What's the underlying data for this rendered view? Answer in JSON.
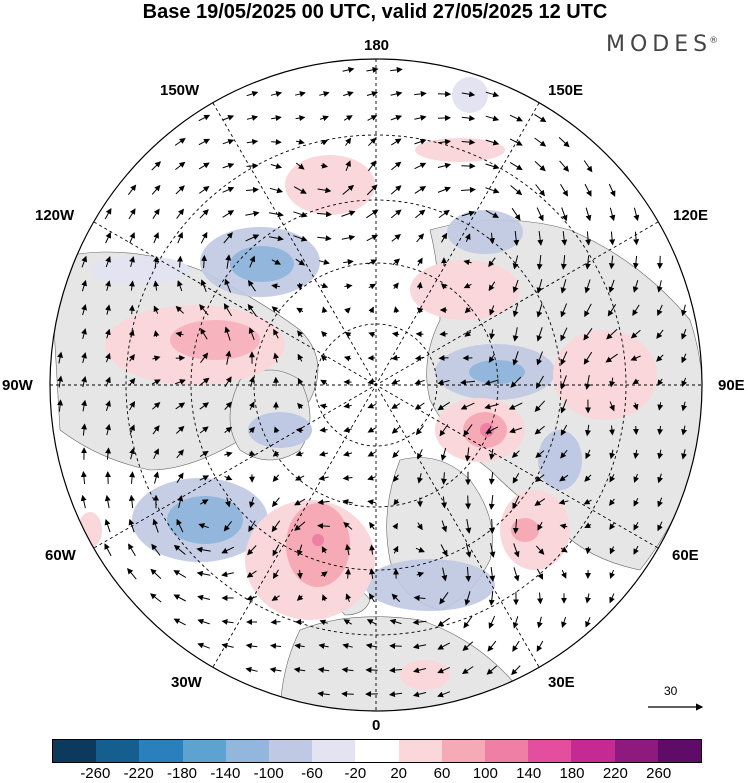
{
  "header": {
    "title": "Base 19/05/2025 00 UTC, valid 27/05/2025 12 UTC",
    "brand": "MODES",
    "brand_mark": "®"
  },
  "map": {
    "projection": "north-polar-stereographic",
    "longitude_labels": {
      "top": "180",
      "upper_left": "150W",
      "upper_right": "150E",
      "left_upper": "120W",
      "right_upper": "120E",
      "left": "90W",
      "right": "90E",
      "left_lower": "60W",
      "right_lower": "60E",
      "lower_left": "30W",
      "lower_right": "30E",
      "bottom": "0"
    },
    "reference_vector": "30"
  },
  "colorbar": {
    "colors": [
      "#0d3a5c",
      "#145f8f",
      "#2a80bd",
      "#5ea3d0",
      "#93b6dc",
      "#c0c9e3",
      "#e4e3f1",
      "#ffffff",
      "#fad7da",
      "#f6aab6",
      "#ef7fa5",
      "#e34e9f",
      "#c42a92",
      "#8f1a7f",
      "#5e0c67"
    ],
    "tick_labels": [
      "-260",
      "-220",
      "-180",
      "-140",
      "-100",
      "-60",
      "-20",
      "20",
      "60",
      "100",
      "140",
      "180",
      "220",
      "260"
    ]
  },
  "colors": {
    "land": "#e8e8e8",
    "ocean": "#ffffff",
    "grid": "#000000"
  }
}
